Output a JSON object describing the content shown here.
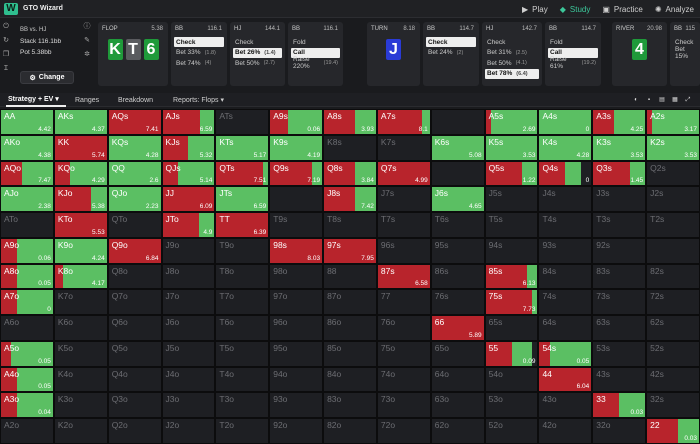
{
  "app": {
    "title": "GTO Wizard"
  },
  "nav": [
    {
      "icon": "▶",
      "label": "Play"
    },
    {
      "icon": "◆",
      "label": "Study"
    },
    {
      "icon": "▣",
      "label": "Practice"
    },
    {
      "icon": "✺",
      "label": "Analyze"
    }
  ],
  "info": {
    "title": "BB vs. HJ",
    "stack": "Stack 116.1bb",
    "pot": "Pot 5.38bb",
    "change_label": "Change"
  },
  "colors": {
    "green": "#5bbf63",
    "red": "#b8242c",
    "bg": "#1e1f23",
    "card_green": "#1f9a3a",
    "card_gray": "#5a5b5f",
    "card_blue": "#2a3bd6",
    "selected": "#eeeeee"
  },
  "strip": [
    {
      "title": "FLOP",
      "value": "5.38",
      "cards": [
        "K",
        "T",
        "6"
      ],
      "card_colors": [
        "green",
        "gray",
        "green"
      ]
    },
    {
      "title": "BB",
      "value": "116.1",
      "options": [
        {
          "label": "Check",
          "amount": "",
          "sel": true
        },
        {
          "label": "Bet 33%",
          "amount": "(1.8)",
          "sel": false
        },
        {
          "label": "Bet 74%",
          "amount": "(4)",
          "sel": false
        }
      ]
    },
    {
      "title": "HJ",
      "value": "144.1",
      "options": [
        {
          "label": "Check",
          "amount": "",
          "sel": false
        },
        {
          "label": "Bet 26%",
          "amount": "(1.4)",
          "sel": true
        },
        {
          "label": "Bet 50%",
          "amount": "(2.7)",
          "sel": false
        }
      ]
    },
    {
      "title": "BB",
      "value": "116.1",
      "options": [
        {
          "label": "Fold",
          "amount": "",
          "sel": false
        },
        {
          "label": "Call",
          "amount": "",
          "sel": true
        },
        {
          "label": "Raise 220%",
          "amount": "(19.4)",
          "sel": false
        }
      ]
    },
    {
      "title": "TURN",
      "value": "8.18",
      "cards": [
        "J"
      ],
      "card_colors": [
        "blue"
      ]
    },
    {
      "title": "BB",
      "value": "114.7",
      "options": [
        {
          "label": "Check",
          "amount": "",
          "sel": true
        },
        {
          "label": "Bet 24%",
          "amount": "(2)",
          "sel": false
        }
      ]
    },
    {
      "title": "HJ",
      "value": "142.7",
      "options": [
        {
          "label": "Check",
          "amount": "",
          "sel": false
        },
        {
          "label": "Bet 31%",
          "amount": "(2.5)",
          "sel": false
        },
        {
          "label": "Bet 50%",
          "amount": "(4.1)",
          "sel": false
        },
        {
          "label": "Bet 78%",
          "amount": "(6.4)",
          "sel": true
        }
      ]
    },
    {
      "title": "BB",
      "value": "114.7",
      "options": [
        {
          "label": "Fold",
          "amount": "",
          "sel": false
        },
        {
          "label": "Call",
          "amount": "",
          "sel": true
        },
        {
          "label": "Raise 61%",
          "amount": "(19.2)",
          "sel": false
        }
      ]
    },
    {
      "title": "RIVER",
      "value": "20.98",
      "cards": [
        "4"
      ],
      "card_colors": [
        "green"
      ]
    },
    {
      "title": "BB",
      "value": "115",
      "options": [
        {
          "label": "Check",
          "amount": "",
          "sel": false
        },
        {
          "label": "Bet 15%",
          "amount": "",
          "sel": false
        }
      ]
    }
  ],
  "toolbar": {
    "tabs": [
      {
        "label": "Strategy + EV ▾",
        "active": true
      },
      {
        "label": "Ranges",
        "active": false
      },
      {
        "label": "Breakdown",
        "active": false
      },
      {
        "label": "Reports: Flops ▾",
        "active": false
      }
    ]
  },
  "grid": [
    [
      [
        "AA",
        0,
        1,
        "4.42"
      ],
      [
        "AKs",
        0,
        1,
        "4.37"
      ],
      [
        "AQs",
        1,
        0,
        "7.41"
      ],
      [
        "AJs",
        0.72,
        0.28,
        "6.59"
      ],
      [
        "ATs",
        0,
        0,
        ""
      ],
      [
        "A9s",
        0.35,
        0.65,
        "0.06"
      ],
      [
        "A8s",
        0.6,
        0.4,
        "3.93"
      ],
      [
        "A7s",
        0.85,
        0.15,
        "8.1"
      ],
      [
        "",
        0,
        0,
        ""
      ],
      [
        "A5s",
        0.1,
        0.9,
        "2.69"
      ],
      [
        "A4s",
        0,
        1,
        "0"
      ],
      [
        "A3s",
        0.4,
        0.6,
        "4.25"
      ],
      [
        "A2s",
        0.1,
        0.9,
        "3.17"
      ]
    ],
    [
      [
        "AKo",
        0,
        1,
        "4.38"
      ],
      [
        "KK",
        1,
        0,
        "5.74"
      ],
      [
        "KQs",
        0,
        1,
        "4.28"
      ],
      [
        "KJs",
        0.5,
        0.5,
        "5.32"
      ],
      [
        "KTs",
        0,
        1,
        "5.17"
      ],
      [
        "K9s",
        0,
        1,
        "4.19"
      ],
      [
        "K8s",
        0,
        0,
        ""
      ],
      [
        "K7s",
        0,
        0,
        ""
      ],
      [
        "K6s",
        0,
        1,
        "5.08"
      ],
      [
        "K5s",
        0,
        1,
        "3.53"
      ],
      [
        "K4s",
        0,
        1,
        "4.28"
      ],
      [
        "K3s",
        0,
        1,
        "3.53"
      ],
      [
        "K2s",
        0,
        1,
        "3.53"
      ]
    ],
    [
      [
        "AQo",
        0.4,
        0.6,
        "7.47"
      ],
      [
        "KQo",
        0.3,
        0.7,
        "4.29"
      ],
      [
        "QQ",
        0,
        1,
        "2.6"
      ],
      [
        "QJs",
        0.3,
        0.7,
        "5.14"
      ],
      [
        "QTs",
        0.9,
        0.1,
        "7.51"
      ],
      [
        "Q9s",
        0.8,
        0.2,
        "7.19"
      ],
      [
        "Q8s",
        0.6,
        0.4,
        "3.84"
      ],
      [
        "Q7s",
        1,
        0,
        "4.99"
      ],
      [
        "",
        0,
        0,
        ""
      ],
      [
        "Q5s",
        0.7,
        0.3,
        "1.22"
      ],
      [
        "Q4s",
        0.5,
        0.3,
        "0"
      ],
      [
        "Q3s",
        0.7,
        0.3,
        "1.45"
      ],
      [
        "Q2s",
        0,
        0,
        ""
      ]
    ],
    [
      [
        "AJo",
        0,
        1,
        "2.38"
      ],
      [
        "KJo",
        0.7,
        0.3,
        "5.38"
      ],
      [
        "QJo",
        0,
        1,
        "2.23"
      ],
      [
        "JJ",
        1,
        0,
        "6.09"
      ],
      [
        "JTs",
        0,
        1,
        "6.59"
      ],
      [
        "",
        0,
        0,
        ""
      ],
      [
        "J8s",
        0.6,
        0.4,
        "7.42"
      ],
      [
        "J7s",
        0,
        0,
        ""
      ],
      [
        "J6s",
        0,
        1,
        "4.65"
      ],
      [
        "J5s",
        0,
        0,
        ""
      ],
      [
        "J4s",
        0,
        0,
        ""
      ],
      [
        "J3s",
        0,
        0,
        ""
      ],
      [
        "J2s",
        0,
        0,
        ""
      ]
    ],
    [
      [
        "ATo",
        0,
        0,
        ""
      ],
      [
        "KTo",
        1,
        0,
        "5.53"
      ],
      [
        "QTo",
        0,
        0,
        ""
      ],
      [
        "JTo",
        0.7,
        0.3,
        "4.9"
      ],
      [
        "TT",
        1,
        0,
        "6.39"
      ],
      [
        "T9s",
        0,
        0,
        ""
      ],
      [
        "T8s",
        0,
        0,
        ""
      ],
      [
        "T7s",
        0,
        0,
        ""
      ],
      [
        "T6s",
        0,
        0,
        ""
      ],
      [
        "T5s",
        0,
        0,
        ""
      ],
      [
        "T4s",
        0,
        0,
        ""
      ],
      [
        "T3s",
        0,
        0,
        ""
      ],
      [
        "T2s",
        0,
        0,
        ""
      ]
    ],
    [
      [
        "A9o",
        0.3,
        0.7,
        "0.06"
      ],
      [
        "K9o",
        0,
        1,
        "4.24"
      ],
      [
        "Q9o",
        1,
        0,
        "6.84"
      ],
      [
        "J9o",
        0,
        0,
        ""
      ],
      [
        "T9o",
        0,
        0,
        ""
      ],
      [
        "98s",
        1,
        0,
        "8.03"
      ],
      [
        "97s",
        1,
        0,
        "7.95"
      ],
      [
        "96s",
        0,
        0,
        ""
      ],
      [
        "95s",
        0,
        0,
        ""
      ],
      [
        "94s",
        0,
        0,
        ""
      ],
      [
        "93s",
        0,
        0,
        ""
      ],
      [
        "92s",
        0,
        0,
        ""
      ],
      [
        "",
        0,
        0,
        ""
      ]
    ],
    [
      [
        "A8o",
        0.3,
        0.7,
        "0.05"
      ],
      [
        "K8o",
        0.15,
        0.85,
        "4.17"
      ],
      [
        "Q8o",
        0,
        0,
        ""
      ],
      [
        "J8o",
        0,
        0,
        ""
      ],
      [
        "T8o",
        0,
        0,
        ""
      ],
      [
        "98o",
        0,
        0,
        ""
      ],
      [
        "88",
        0,
        0,
        ""
      ],
      [
        "87s",
        1,
        0,
        "6.58"
      ],
      [
        "86s",
        0,
        0,
        ""
      ],
      [
        "85s",
        0.8,
        0.2,
        "6.13"
      ],
      [
        "84s",
        0,
        0,
        ""
      ],
      [
        "83s",
        0,
        0,
        ""
      ],
      [
        "82s",
        0,
        0,
        ""
      ]
    ],
    [
      [
        "A7o",
        0.3,
        0.7,
        "0"
      ],
      [
        "K7o",
        0,
        0,
        ""
      ],
      [
        "Q7o",
        0,
        0,
        ""
      ],
      [
        "J7o",
        0,
        0,
        ""
      ],
      [
        "T7o",
        0,
        0,
        ""
      ],
      [
        "97o",
        0,
        0,
        ""
      ],
      [
        "87o",
        0,
        0,
        ""
      ],
      [
        "77",
        0,
        0,
        ""
      ],
      [
        "76s",
        0,
        0,
        ""
      ],
      [
        "75s",
        0.9,
        0.1,
        "7.73"
      ],
      [
        "74s",
        0,
        0,
        ""
      ],
      [
        "73s",
        0,
        0,
        ""
      ],
      [
        "72s",
        0,
        0,
        ""
      ]
    ],
    [
      [
        "A6o",
        0,
        0,
        ""
      ],
      [
        "K6o",
        0,
        0,
        ""
      ],
      [
        "Q6o",
        0,
        0,
        ""
      ],
      [
        "J6o",
        0,
        0,
        ""
      ],
      [
        "T6o",
        0,
        0,
        ""
      ],
      [
        "96o",
        0,
        0,
        ""
      ],
      [
        "86o",
        0,
        0,
        ""
      ],
      [
        "76o",
        0,
        0,
        ""
      ],
      [
        "66",
        1,
        0,
        "5.89"
      ],
      [
        "65s",
        0,
        0,
        ""
      ],
      [
        "64s",
        0,
        0,
        ""
      ],
      [
        "63s",
        0,
        0,
        ""
      ],
      [
        "62s",
        0,
        0,
        ""
      ]
    ],
    [
      [
        "A5o",
        0.2,
        0.8,
        "0.05"
      ],
      [
        "K5o",
        0,
        0,
        ""
      ],
      [
        "Q5o",
        0,
        0,
        ""
      ],
      [
        "J5o",
        0,
        0,
        ""
      ],
      [
        "T5o",
        0,
        0,
        ""
      ],
      [
        "95o",
        0,
        0,
        ""
      ],
      [
        "85o",
        0,
        0,
        ""
      ],
      [
        "75o",
        0,
        0,
        ""
      ],
      [
        "65o",
        0,
        0,
        ""
      ],
      [
        "55",
        0.5,
        0.4,
        "0.09"
      ],
      [
        "54s",
        0.2,
        0.8,
        "0.05"
      ],
      [
        "53s",
        0,
        0,
        ""
      ],
      [
        "52s",
        0,
        0,
        ""
      ]
    ],
    [
      [
        "A4o",
        0.3,
        0.7,
        "0.05"
      ],
      [
        "K4o",
        0,
        0,
        ""
      ],
      [
        "Q4o",
        0,
        0,
        ""
      ],
      [
        "J4o",
        0,
        0,
        ""
      ],
      [
        "T4o",
        0,
        0,
        ""
      ],
      [
        "94o",
        0,
        0,
        ""
      ],
      [
        "84o",
        0,
        0,
        ""
      ],
      [
        "74o",
        0,
        0,
        ""
      ],
      [
        "64o",
        0,
        0,
        ""
      ],
      [
        "54o",
        0,
        0,
        ""
      ],
      [
        "44",
        1,
        0,
        "6.04"
      ],
      [
        "43s",
        0,
        0,
        ""
      ],
      [
        "42s",
        0,
        0,
        ""
      ]
    ],
    [
      [
        "A3o",
        0.3,
        0.7,
        "0.04"
      ],
      [
        "K3o",
        0,
        0,
        ""
      ],
      [
        "Q3o",
        0,
        0,
        ""
      ],
      [
        "J3o",
        0,
        0,
        ""
      ],
      [
        "T3o",
        0,
        0,
        ""
      ],
      [
        "93o",
        0,
        0,
        ""
      ],
      [
        "83o",
        0,
        0,
        ""
      ],
      [
        "73o",
        0,
        0,
        ""
      ],
      [
        "63o",
        0,
        0,
        ""
      ],
      [
        "53o",
        0,
        0,
        ""
      ],
      [
        "43o",
        0,
        0,
        ""
      ],
      [
        "33",
        0.5,
        0.5,
        "0.03"
      ],
      [
        "32s",
        0,
        0,
        ""
      ]
    ],
    [
      [
        "A2o",
        0,
        0,
        ""
      ],
      [
        "K2o",
        0,
        0,
        ""
      ],
      [
        "Q2o",
        0,
        0,
        ""
      ],
      [
        "J2o",
        0,
        0,
        ""
      ],
      [
        "T2o",
        0,
        0,
        ""
      ],
      [
        "92o",
        0,
        0,
        ""
      ],
      [
        "82o",
        0,
        0,
        ""
      ],
      [
        "72o",
        0,
        0,
        ""
      ],
      [
        "62o",
        0,
        0,
        ""
      ],
      [
        "52o",
        0,
        0,
        ""
      ],
      [
        "42o",
        0,
        0,
        ""
      ],
      [
        "32o",
        0,
        0,
        ""
      ],
      [
        "22",
        0.6,
        0.4,
        "0.03"
      ]
    ]
  ]
}
